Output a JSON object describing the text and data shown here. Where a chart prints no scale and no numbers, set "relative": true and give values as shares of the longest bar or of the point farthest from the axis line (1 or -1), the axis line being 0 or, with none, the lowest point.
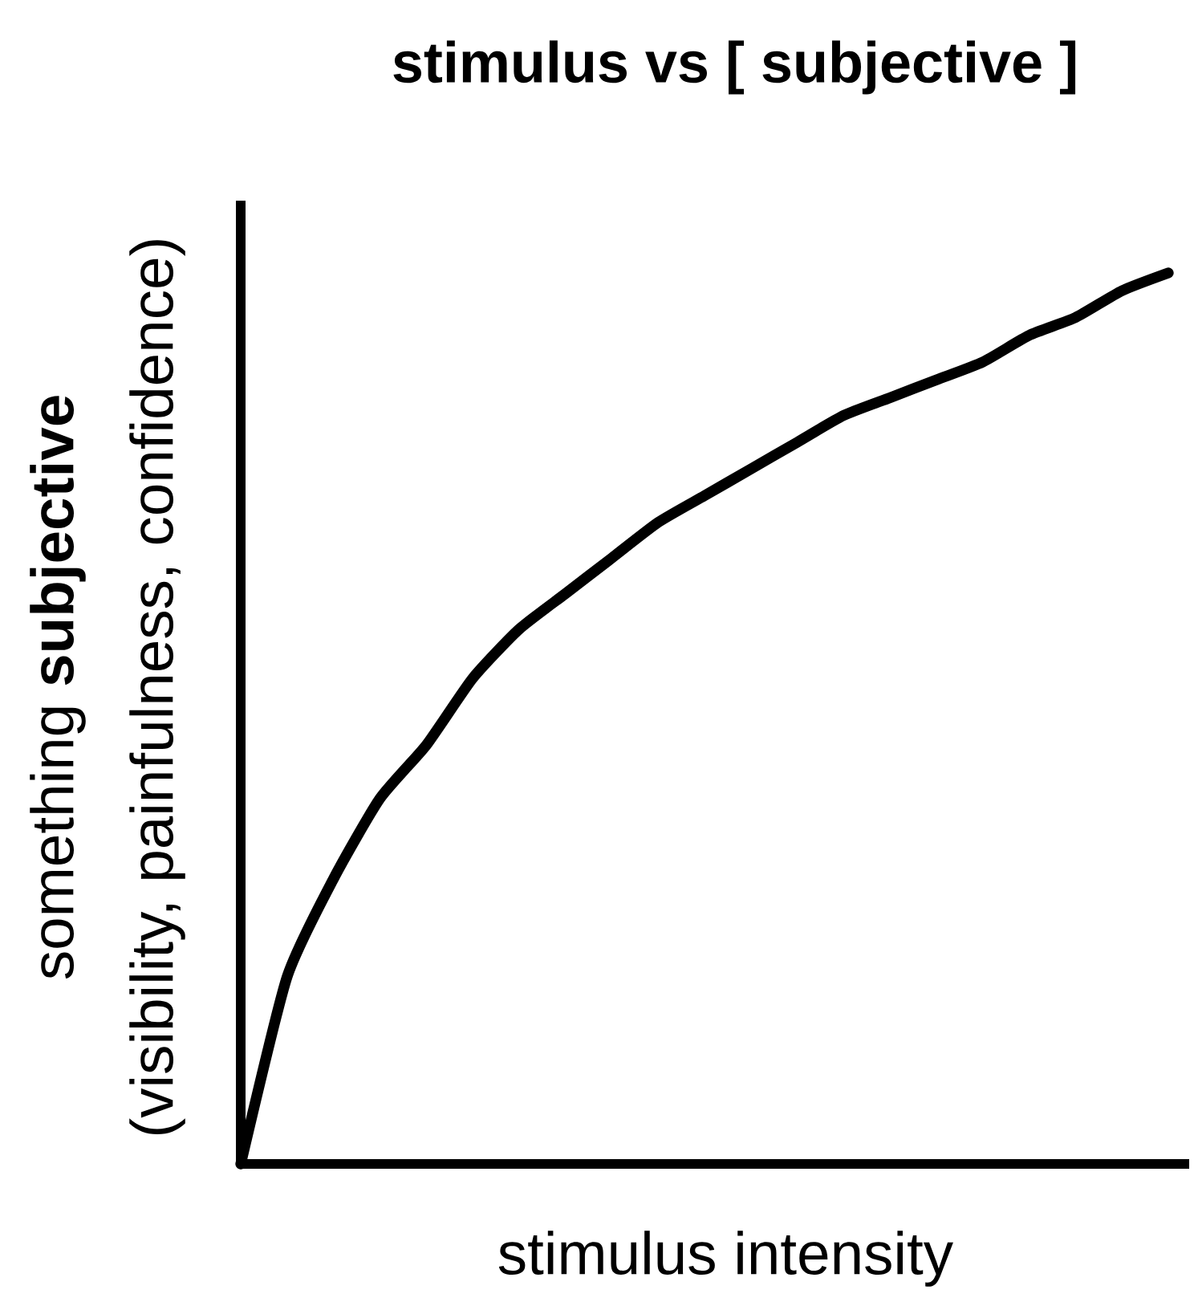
{
  "chart_data": {
    "type": "line",
    "title": "stimulus vs [ subjective ]",
    "xlabel": "stimulus intensity",
    "ylabel": "something **subjective**",
    "annotations": [
      "(visibility, painfulness, confidence)"
    ],
    "relative": true,
    "color": "#000000",
    "categories": [
      null,
      null,
      null,
      null,
      null,
      null,
      null,
      null,
      null,
      null,
      null,
      null,
      null,
      null,
      null,
      null,
      null,
      null,
      null,
      null,
      null
    ],
    "values": [
      0,
      0.21,
      0.32,
      0.41,
      0.47,
      0.545,
      0.6,
      0.64,
      0.68,
      0.72,
      0.75,
      0.78,
      0.81,
      0.84,
      0.86,
      0.88,
      0.9,
      0.93,
      0.95,
      0.98,
      1
    ],
    "tick_labels": false,
    "marker": "none",
    "line_style": "solid"
  }
}
